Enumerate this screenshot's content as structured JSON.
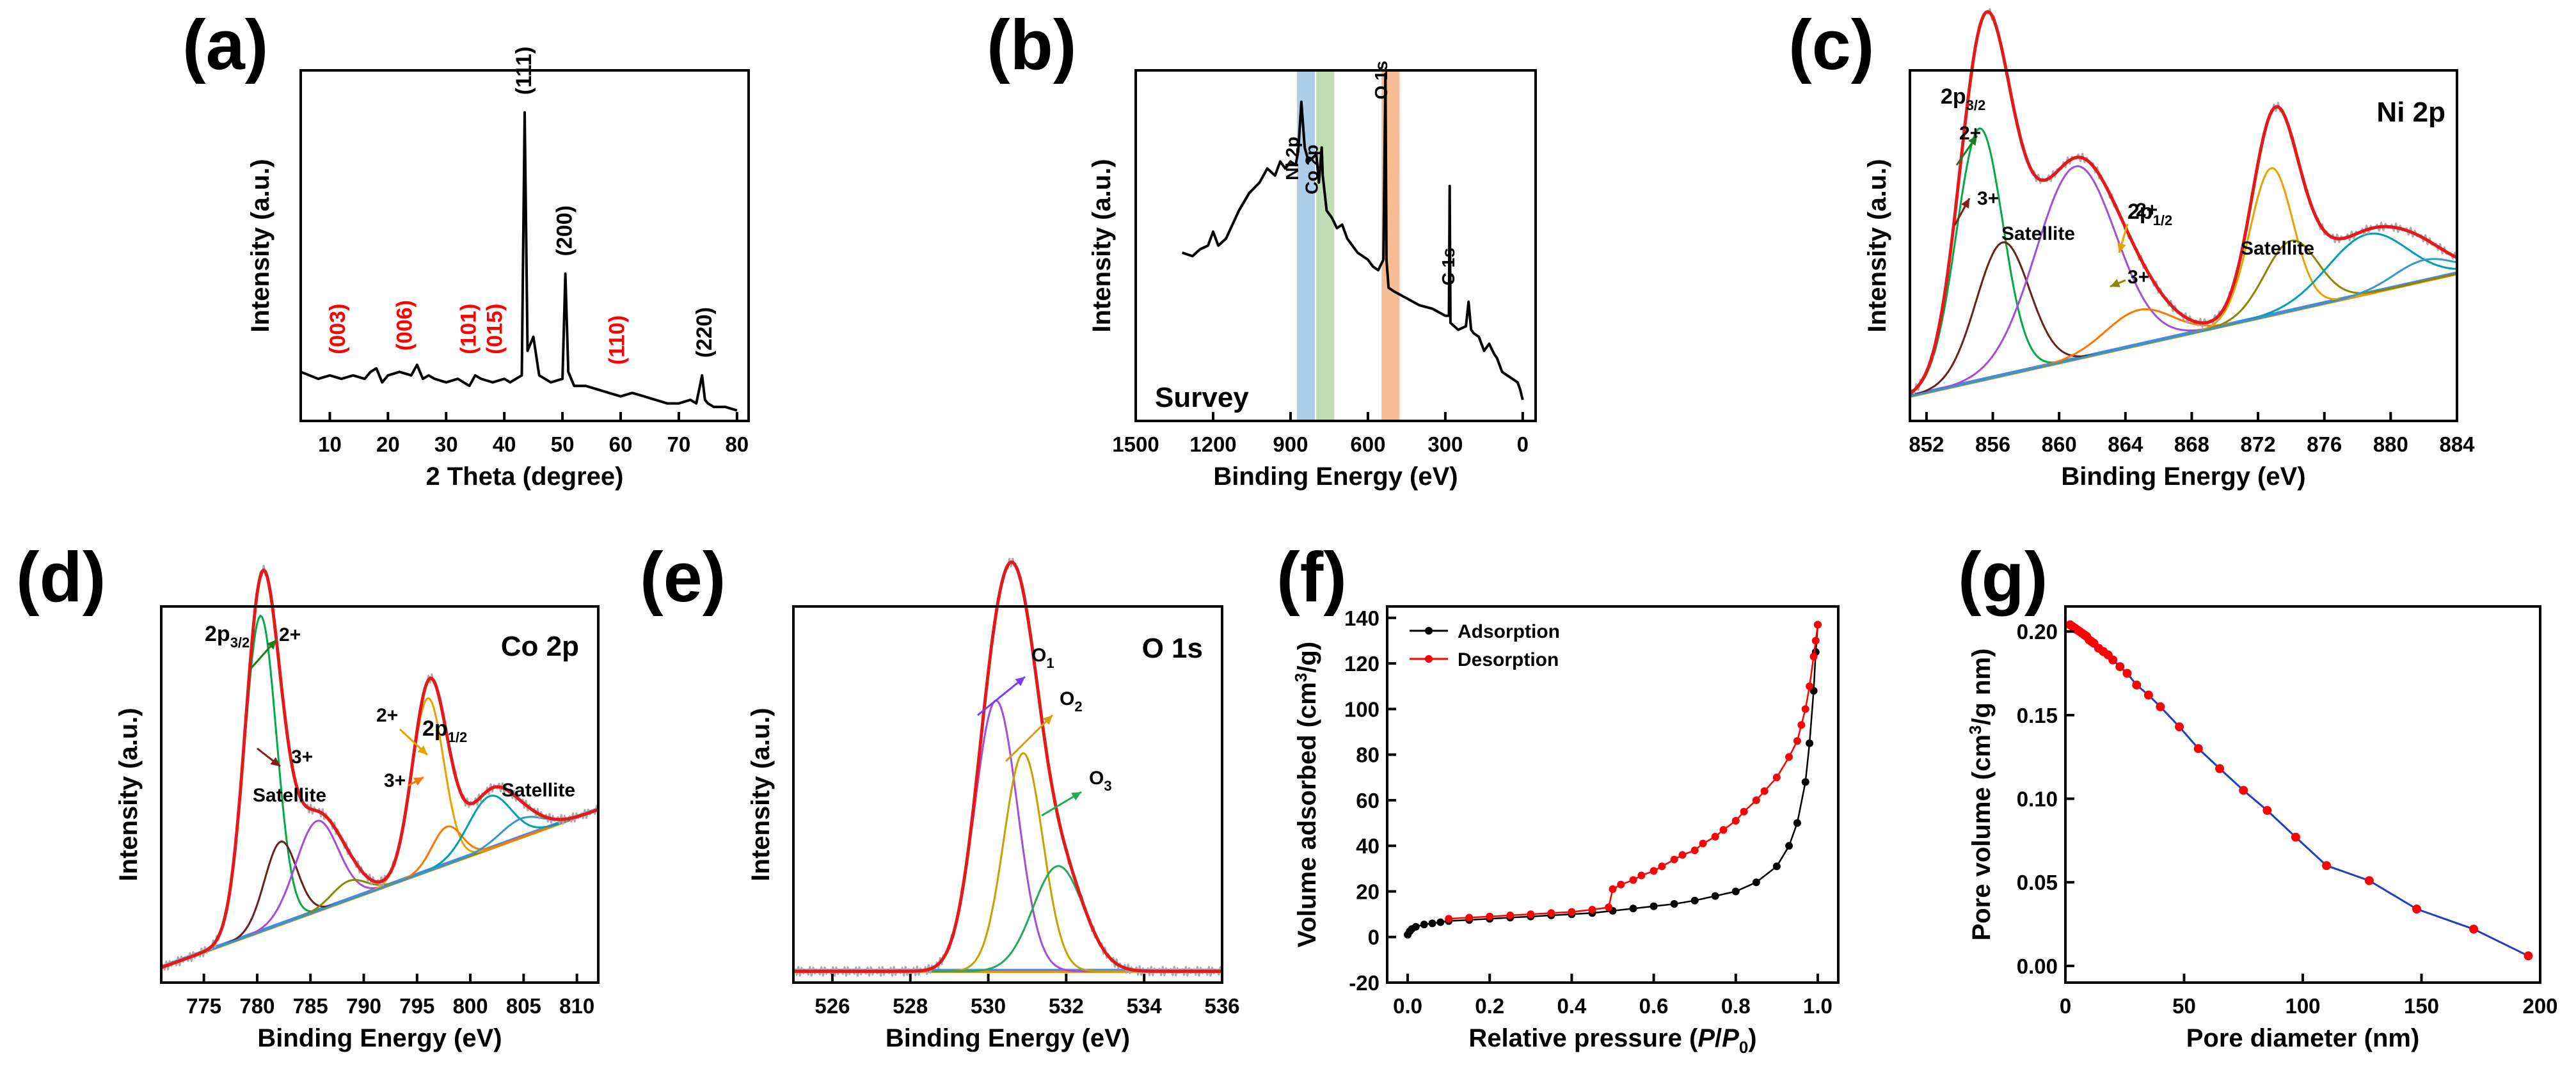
{
  "chart_data": [
    {
      "id": "a",
      "panel_label": "(a)",
      "type": "line",
      "title": "",
      "xlabel": "2 Theta (degree)",
      "ylabel": "Intensity (a.u.)",
      "xlim": [
        5,
        82
      ],
      "ylim": [
        0,
        1
      ],
      "xticks": [
        10,
        20,
        30,
        40,
        50,
        60,
        70,
        80
      ],
      "x": [
        5,
        8,
        10,
        12,
        14,
        16,
        17,
        18,
        19,
        20,
        22,
        24,
        25,
        26,
        27,
        28,
        30,
        32,
        34,
        35,
        36,
        38,
        40,
        41,
        42,
        43,
        43.5,
        44,
        45,
        46,
        48,
        50,
        50.5,
        51,
        52,
        54,
        56,
        58,
        60,
        62,
        64,
        66,
        68,
        70,
        72,
        73,
        74,
        74.5,
        75,
        76,
        78,
        80
      ],
      "y": [
        0.14,
        0.12,
        0.13,
        0.12,
        0.13,
        0.12,
        0.14,
        0.15,
        0.11,
        0.13,
        0.14,
        0.13,
        0.16,
        0.12,
        0.13,
        0.12,
        0.11,
        0.12,
        0.1,
        0.13,
        0.12,
        0.11,
        0.12,
        0.11,
        0.12,
        0.13,
        0.88,
        0.2,
        0.24,
        0.13,
        0.11,
        0.12,
        0.42,
        0.14,
        0.1,
        0.1,
        0.09,
        0.08,
        0.07,
        0.08,
        0.07,
        0.06,
        0.05,
        0.05,
        0.06,
        0.05,
        0.13,
        0.06,
        0.05,
        0.04,
        0.04,
        0.03
      ],
      "peaks": [
        {
          "label": "(111)",
          "x": 43.5,
          "color": "#000000"
        },
        {
          "label": "(200)",
          "x": 50.5,
          "color": "#000000"
        },
        {
          "label": "(220)",
          "x": 74.5,
          "color": "#000000"
        },
        {
          "label": "(003)",
          "x": 11.5,
          "color": "#ff0000"
        },
        {
          "label": "(006)",
          "x": 23,
          "color": "#ff0000"
        },
        {
          "label": "(101)",
          "x": 34,
          "color": "#ff0000"
        },
        {
          "label": "(015)",
          "x": 38.5,
          "color": "#ff0000"
        },
        {
          "label": "(110)",
          "x": 59.5,
          "color": "#ff0000"
        }
      ]
    },
    {
      "id": "b",
      "panel_label": "(b)",
      "type": "line",
      "title": "Survey",
      "xlabel": "Binding Energy (eV)",
      "ylabel": "Intensity (a.u.)",
      "xlim": [
        1500,
        -50
      ],
      "ylim": [
        0,
        1
      ],
      "xticks": [
        1500,
        1200,
        900,
        600,
        300,
        0
      ],
      "x": [
        1320,
        1280,
        1250,
        1220,
        1200,
        1180,
        1150,
        1100,
        1060,
        1020,
        990,
        960,
        940,
        920,
        900,
        880,
        870,
        858,
        845,
        830,
        800,
        790,
        779,
        775,
        760,
        740,
        720,
        700,
        680,
        660,
        640,
        600,
        580,
        560,
        540,
        532,
        528,
        520,
        500,
        450,
        400,
        350,
        300,
        286,
        283,
        280,
        250,
        220,
        210,
        200,
        190,
        170,
        150,
        130,
        110,
        100,
        80,
        60,
        40,
        20,
        10,
        0
      ],
      "y": [
        0.48,
        0.47,
        0.49,
        0.5,
        0.54,
        0.5,
        0.52,
        0.6,
        0.65,
        0.68,
        0.72,
        0.7,
        0.74,
        0.72,
        0.74,
        0.73,
        0.77,
        0.91,
        0.78,
        0.74,
        0.76,
        0.68,
        0.78,
        0.7,
        0.6,
        0.58,
        0.55,
        0.56,
        0.52,
        0.5,
        0.48,
        0.46,
        0.44,
        0.43,
        0.46,
        0.99,
        0.46,
        0.38,
        0.37,
        0.35,
        0.33,
        0.32,
        0.3,
        0.3,
        0.67,
        0.28,
        0.26,
        0.27,
        0.34,
        0.26,
        0.25,
        0.24,
        0.2,
        0.22,
        0.19,
        0.18,
        0.14,
        0.13,
        0.12,
        0.11,
        0.09,
        0.06
      ],
      "bands": [
        {
          "label": "Ni 2p",
          "center": 860,
          "color": "#9fc5e8"
        },
        {
          "label": "Co 2p",
          "center": 785,
          "color": "#b6d7a8"
        },
        {
          "label": "O 1s",
          "center": 532,
          "color": "#f4b183"
        }
      ],
      "peak_labels": [
        {
          "label": "Ni 2p",
          "x": 870
        },
        {
          "label": "Co 2p",
          "x": 795
        },
        {
          "label": "O 1s",
          "x": 525
        },
        {
          "label": "C 1s",
          "x": 265
        }
      ]
    },
    {
      "id": "c",
      "panel_label": "(c)",
      "type": "xps-fit",
      "title": "Ni 2p",
      "xlabel": "Binding Energy (eV)",
      "ylabel": "Intensity (a.u.)",
      "xlim": [
        851,
        884
      ],
      "ylim": [
        0,
        1
      ],
      "xticks": [
        852,
        856,
        860,
        864,
        868,
        872,
        876,
        880,
        884
      ],
      "baseline": [
        [
          851,
          0.07
        ],
        [
          884,
          0.42
        ]
      ],
      "components": [
        {
          "color": "#00aa44",
          "center": 855.2,
          "height": 0.72,
          "width": 1.4
        },
        {
          "color": "#6b1f1f",
          "center": 856.6,
          "height": 0.38,
          "width": 1.6
        },
        {
          "color": "#a64dd8",
          "center": 861,
          "height": 0.55,
          "width": 2.4
        },
        {
          "color": "#ff7700",
          "center": 864.8,
          "height": 0.1,
          "width": 2.0
        },
        {
          "color": "#e6a300",
          "center": 872.8,
          "height": 0.42,
          "width": 1.3
        },
        {
          "color": "#888800",
          "center": 874,
          "height": 0.2,
          "width": 1.6
        },
        {
          "color": "#00a0b0",
          "center": 878.6,
          "height": 0.17,
          "width": 2.4
        },
        {
          "color": "#3399cc",
          "center": 882,
          "height": 0.06,
          "width": 1.8
        }
      ],
      "annotations": [
        {
          "text": "2+",
          "kind": "plain"
        },
        {
          "text": "3+",
          "kind": "plain"
        },
        {
          "text": "Satellite",
          "kind": "plain"
        },
        {
          "text": "2+",
          "kind": "plain"
        },
        {
          "text": "3+",
          "kind": "plain"
        },
        {
          "text": "Satellite",
          "kind": "plain"
        },
        {
          "text": "2p",
          "sub": "3/2",
          "kind": "orbital"
        },
        {
          "text": "2p",
          "sub": "1/2",
          "kind": "orbital"
        }
      ]
    },
    {
      "id": "d",
      "panel_label": "(d)",
      "type": "xps-fit",
      "title": "Co 2p",
      "xlabel": "Binding Energy (eV)",
      "ylabel": "Intensity (a.u.)",
      "xlim": [
        771,
        812
      ],
      "ylim": [
        0,
        1
      ],
      "xticks": [
        775,
        780,
        785,
        790,
        795,
        800,
        805,
        810
      ],
      "baseline": [
        [
          771,
          0.04
        ],
        [
          812,
          0.46
        ]
      ],
      "components": [
        {
          "color": "#00aa44",
          "center": 780.3,
          "height": 0.84,
          "width": 1.5
        },
        {
          "color": "#6b1f1f",
          "center": 782.2,
          "height": 0.22,
          "width": 1.5
        },
        {
          "color": "#a64dd8",
          "center": 785.6,
          "height": 0.24,
          "width": 2.0
        },
        {
          "color": "#888800",
          "center": 788.6,
          "height": 0.05,
          "width": 1.6
        },
        {
          "color": "#e6a300",
          "center": 796.0,
          "height": 0.46,
          "width": 1.5
        },
        {
          "color": "#ff7700",
          "center": 797.8,
          "height": 0.1,
          "width": 1.4
        },
        {
          "color": "#00a0b0",
          "center": 801.8,
          "height": 0.14,
          "width": 2.0
        },
        {
          "color": "#3399cc",
          "center": 804.8,
          "height": 0.05,
          "width": 2.0
        }
      ],
      "annotations": [
        {
          "text": "2+",
          "kind": "plain"
        },
        {
          "text": "3+",
          "kind": "plain"
        },
        {
          "text": "Satellite",
          "kind": "plain"
        },
        {
          "text": "2+",
          "kind": "plain"
        },
        {
          "text": "3+",
          "kind": "plain"
        },
        {
          "text": "Satellite",
          "kind": "plain"
        },
        {
          "text": "2p",
          "sub": "3/2",
          "kind": "orbital"
        },
        {
          "text": "2p",
          "sub": "1/2",
          "kind": "orbital"
        }
      ]
    },
    {
      "id": "e",
      "panel_label": "(e)",
      "type": "xps-fit",
      "title": "O 1s",
      "xlabel": "Binding Energy (eV)",
      "ylabel": "Intensity (a.u.)",
      "xlim": [
        525,
        536
      ],
      "ylim": [
        0,
        1
      ],
      "xticks": [
        526,
        528,
        530,
        532,
        534,
        536
      ],
      "baseline": [
        [
          525,
          0.03
        ],
        [
          536,
          0.03
        ]
      ],
      "components": [
        {
          "color": "#a64dd8",
          "center": 530.2,
          "height": 0.72,
          "width": 0.55
        },
        {
          "color": "#c8a000",
          "center": 530.9,
          "height": 0.58,
          "width": 0.5
        },
        {
          "color": "#22aa55",
          "center": 531.8,
          "height": 0.28,
          "width": 0.65
        }
      ],
      "annotations": [
        {
          "text": "O",
          "sub": "1",
          "color": "#7a3cff"
        },
        {
          "text": "O",
          "sub": "2",
          "color": "#d4a017"
        },
        {
          "text": "O",
          "sub": "3",
          "color": "#22aa55"
        }
      ]
    },
    {
      "id": "f",
      "panel_label": "(f)",
      "type": "line",
      "xlabel_main": "Relative pressure (",
      "xlabel_p": "P",
      "xlabel_slash": "/",
      "xlabel_p0": "P",
      "xlabel_zero": "0",
      "xlabel_close": ")",
      "ylabel_main": "Volume adsorbed (cm",
      "ylabel_sup": "3",
      "ylabel_close": "/g)",
      "xlim": [
        -0.05,
        1.05
      ],
      "ylim": [
        -20,
        145
      ],
      "xticks": [
        "0.0",
        "0.2",
        "0.4",
        "0.6",
        "0.8",
        "1.0"
      ],
      "yticks": [
        "-20",
        "0",
        "20",
        "40",
        "60",
        "80",
        "100",
        "120",
        "140"
      ],
      "series": [
        {
          "name": "Adsorption",
          "color": "#000000",
          "x": [
            0.0,
            0.005,
            0.01,
            0.02,
            0.04,
            0.06,
            0.08,
            0.1,
            0.15,
            0.2,
            0.25,
            0.3,
            0.35,
            0.4,
            0.45,
            0.5,
            0.55,
            0.6,
            0.65,
            0.7,
            0.75,
            0.8,
            0.85,
            0.9,
            0.93,
            0.95,
            0.97,
            0.98,
            0.99,
            0.995,
            1.0
          ],
          "y": [
            1,
            2.5,
            3.5,
            4.5,
            5.5,
            6,
            6.5,
            7,
            7.5,
            8,
            8.5,
            9,
            9.5,
            10,
            10.5,
            11.5,
            12.5,
            13.5,
            14.5,
            16,
            18,
            20,
            24,
            31,
            40,
            50,
            68,
            85,
            108,
            125,
            137
          ]
        },
        {
          "name": "Desorption",
          "color": "#ff0000",
          "x": [
            1.0,
            0.995,
            0.99,
            0.98,
            0.97,
            0.96,
            0.95,
            0.93,
            0.9,
            0.87,
            0.85,
            0.82,
            0.8,
            0.77,
            0.75,
            0.72,
            0.7,
            0.67,
            0.65,
            0.62,
            0.6,
            0.57,
            0.55,
            0.52,
            0.5,
            0.49,
            0.45,
            0.4,
            0.35,
            0.3,
            0.25,
            0.2,
            0.15,
            0.1
          ],
          "y": [
            137,
            130,
            123,
            110,
            100,
            93,
            86,
            79,
            70,
            64,
            60,
            55,
            51,
            47,
            44,
            41,
            38,
            36,
            34,
            31,
            29,
            27,
            25,
            23,
            21,
            13,
            12,
            11,
            10.5,
            10,
            9.5,
            9,
            8.5,
            8
          ]
        }
      ]
    },
    {
      "id": "g",
      "panel_label": "(g)",
      "type": "line",
      "xlabel": "Pore diameter (nm)",
      "ylabel_main": "Pore volume (cm",
      "ylabel_sup": "3",
      "ylabel_close": "/g nm)",
      "xlim": [
        0,
        200
      ],
      "ylim": [
        -0.01,
        0.215
      ],
      "xticks": [
        "0",
        "50",
        "100",
        "150",
        "200"
      ],
      "yticks": [
        "0.00",
        "0.05",
        "0.10",
        "0.15",
        "0.20"
      ],
      "x": [
        2,
        3,
        4,
        5,
        6,
        7,
        8,
        9,
        10,
        11,
        12,
        14,
        16,
        18,
        20,
        23,
        26,
        30,
        35,
        40,
        48,
        56,
        65,
        75,
        85,
        97,
        110,
        128,
        148,
        172,
        195
      ],
      "y": [
        0.204,
        0.203,
        0.202,
        0.201,
        0.2,
        0.199,
        0.198,
        0.197,
        0.195,
        0.194,
        0.193,
        0.19,
        0.188,
        0.186,
        0.183,
        0.179,
        0.175,
        0.168,
        0.162,
        0.155,
        0.143,
        0.13,
        0.118,
        0.105,
        0.093,
        0.077,
        0.06,
        0.051,
        0.034,
        0.022,
        0.006
      ],
      "color": "#ff0000",
      "line_color": "#1f3fbf"
    }
  ]
}
